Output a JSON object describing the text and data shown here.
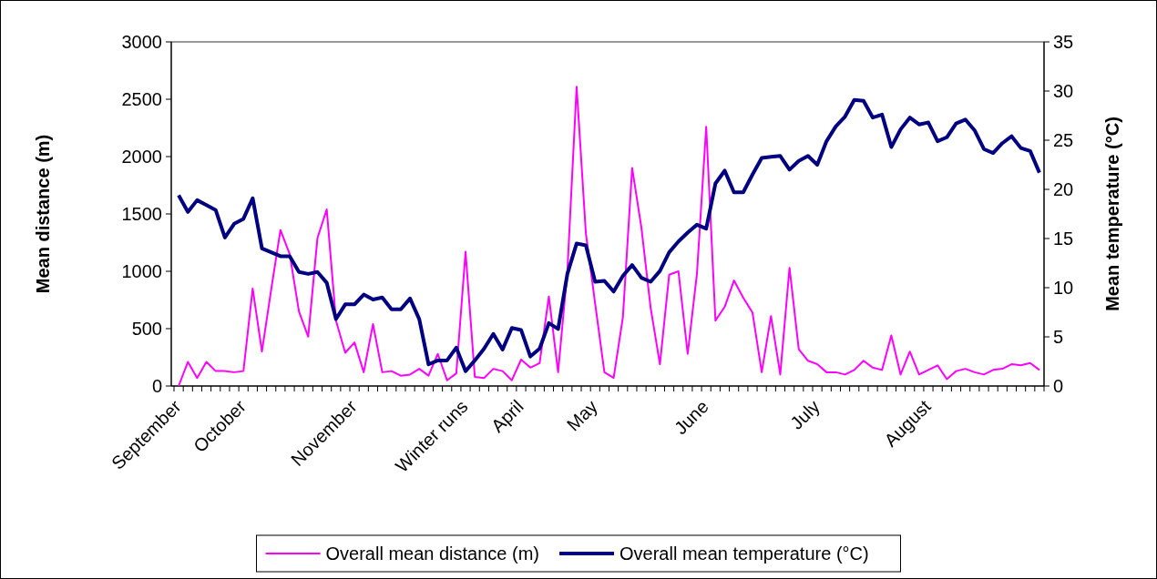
{
  "chart_data": {
    "type": "line",
    "categories": [
      "September",
      null,
      null,
      null,
      null,
      null,
      null,
      "October",
      null,
      null,
      null,
      null,
      null,
      null,
      null,
      null,
      null,
      null,
      null,
      "November",
      null,
      null,
      null,
      null,
      null,
      null,
      null,
      null,
      null,
      null,
      null,
      "Winter runs",
      null,
      null,
      null,
      null,
      null,
      "April",
      null,
      null,
      null,
      null,
      null,
      null,
      null,
      "May",
      null,
      null,
      null,
      null,
      null,
      null,
      null,
      null,
      null,
      null,
      null,
      "June",
      null,
      null,
      null,
      null,
      null,
      null,
      null,
      null,
      null,
      null,
      null,
      "July",
      null,
      null,
      null,
      null,
      null,
      null,
      null,
      null,
      null,
      null,
      null,
      "August",
      null,
      null,
      null,
      null,
      null,
      null,
      null,
      null,
      null,
      null,
      null,
      null
    ],
    "series": [
      {
        "name": "Overall mean distance (m)",
        "color": "#ff00ff",
        "values": [
          0,
          210,
          70,
          210,
          130,
          130,
          120,
          130,
          850,
          300,
          840,
          1360,
          1150,
          650,
          430,
          1290,
          1540,
          570,
          290,
          380,
          120,
          540,
          120,
          130,
          90,
          100,
          150,
          90,
          280,
          50,
          110,
          1170,
          80,
          70,
          150,
          130,
          50,
          230,
          160,
          200,
          780,
          120,
          1000,
          2610,
          1330,
          720,
          120,
          70,
          600,
          1900,
          1380,
          680,
          190,
          970,
          1000,
          280,
          980,
          2260,
          570,
          690,
          920,
          770,
          640,
          120,
          610,
          100,
          1030,
          320,
          220,
          190,
          120,
          120,
          100,
          140,
          220,
          160,
          140,
          440,
          100,
          300,
          100,
          140,
          180,
          60,
          130,
          150,
          120,
          100,
          140,
          150,
          190,
          180,
          200,
          140
        ]
      },
      {
        "name": "Overall mean temperature (°C)",
        "color": "#000080",
        "axis": "y2",
        "values": [
          19.4,
          17.7,
          18.9,
          18.4,
          17.9,
          15.1,
          16.5,
          17.0,
          19.1,
          14.0,
          13.6,
          13.2,
          13.2,
          11.6,
          11.4,
          11.6,
          10.5,
          6.8,
          8.3,
          8.3,
          9.3,
          8.8,
          9.0,
          7.8,
          7.8,
          8.9,
          6.8,
          2.2,
          2.6,
          2.6,
          3.9,
          1.5,
          2.6,
          3.8,
          5.3,
          3.7,
          5.9,
          5.7,
          3.0,
          3.8,
          6.4,
          5.8,
          11.4,
          14.5,
          14.3,
          10.6,
          10.7,
          9.6,
          11.2,
          12.3,
          11.0,
          10.6,
          11.7,
          13.6,
          14.7,
          15.6,
          16.4,
          16.0,
          20.6,
          21.9,
          19.7,
          19.7,
          21.5,
          23.2,
          23.3,
          23.4,
          22.0,
          22.9,
          23.4,
          22.5,
          24.9,
          26.4,
          27.4,
          29.1,
          29.0,
          27.3,
          27.6,
          24.3,
          26.1,
          27.3,
          26.6,
          26.8,
          24.9,
          25.3,
          26.7,
          27.1,
          26.0,
          24.1,
          23.7,
          24.7,
          25.4,
          24.2,
          23.9,
          21.7
        ]
      }
    ],
    "ylabel": "Mean distance (m)",
    "y2label": "Mean temperature (°C)",
    "ylim": [
      0,
      3000
    ],
    "yticks": [
      0,
      500,
      1000,
      1500,
      2000,
      2500,
      3000
    ],
    "y2lim": [
      0,
      35
    ],
    "y2ticks": [
      0,
      5,
      10,
      15,
      20,
      25,
      30,
      35
    ],
    "legend": "bottom",
    "grid": false,
    "marker": "none"
  }
}
